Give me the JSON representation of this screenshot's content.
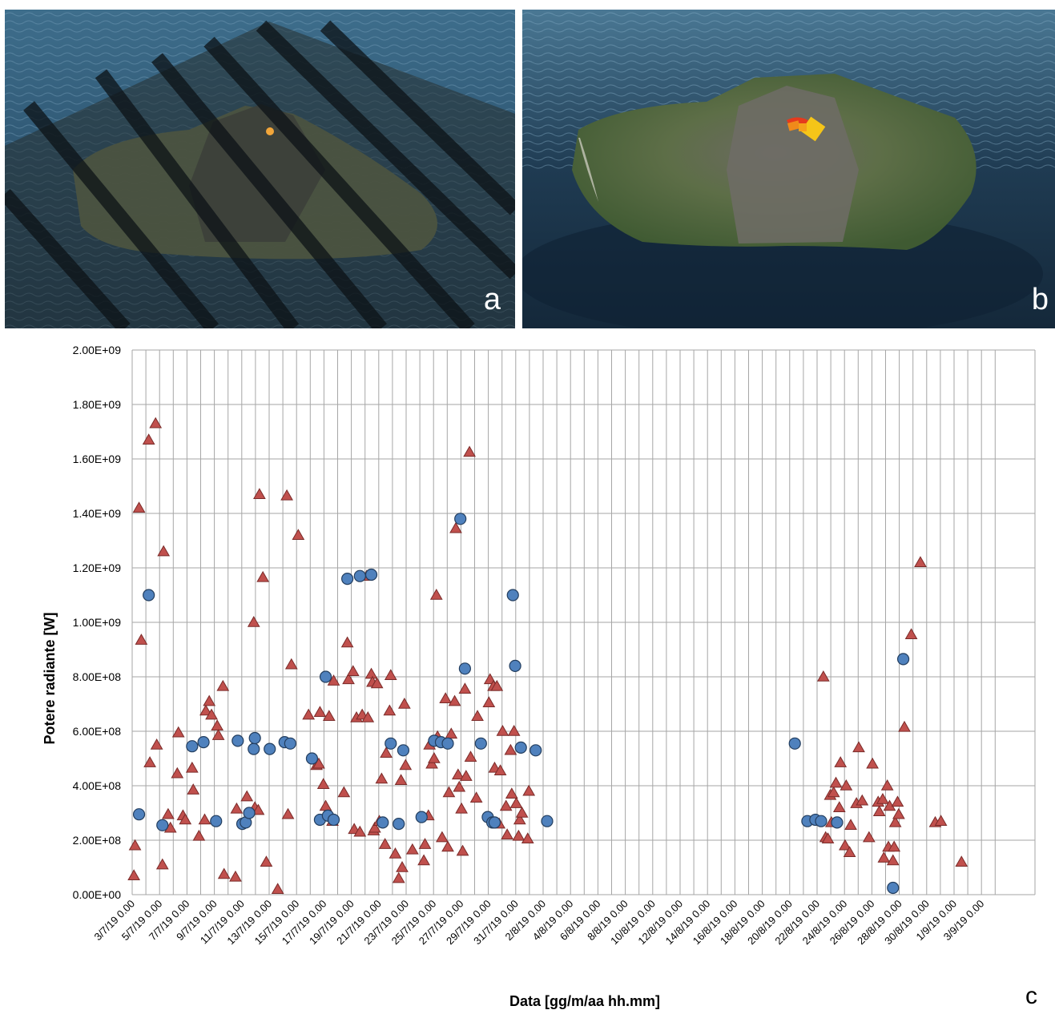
{
  "panels": {
    "a_label": "a",
    "b_label": "b",
    "c_label": "c"
  },
  "colors": {
    "triangle_fill": "#c0504d",
    "triangle_stroke": "#7a2b29",
    "circle_fill": "#4f81bd",
    "circle_stroke": "#233e5f",
    "grid": "#a6a6a6",
    "sea": "#1d3b55",
    "island": "#4a5a3a"
  },
  "chart_data": {
    "type": "scatter",
    "title": "",
    "xlabel": "Data [gg/m/aa hh.mm]",
    "ylabel": "Potere radiante [W]",
    "ylim": [
      0,
      2000000000
    ],
    "y_ticks": [
      {
        "value": 0,
        "label": "0.00E+00"
      },
      {
        "value": 200000000,
        "label": "2.00E+08"
      },
      {
        "value": 400000000,
        "label": "4.00E+08"
      },
      {
        "value": 600000000,
        "label": "6.00E+08"
      },
      {
        "value": 800000000,
        "label": "8.00E+08"
      },
      {
        "value": 1000000000,
        "label": "1.00E+09"
      },
      {
        "value": 1200000000,
        "label": "1.20E+09"
      },
      {
        "value": 1400000000,
        "label": "1.40E+09"
      },
      {
        "value": 1600000000,
        "label": "1.60E+09"
      },
      {
        "value": 1800000000,
        "label": "1.80E+09"
      },
      {
        "value": 2000000000,
        "label": "2.00E+09"
      }
    ],
    "xlim": [
      "2019-07-03",
      "2019-09-04"
    ],
    "x_tick_labels": [
      "3/7/19 0.00",
      "5/7/19 0.00",
      "7/7/19 0.00",
      "9/7/19 0.00",
      "11/7/19 0.00",
      "13/7/19 0.00",
      "15/7/19 0.00",
      "17/7/19 0.00",
      "19/7/19 0.00",
      "21/7/19 0.00",
      "23/7/19 0.00",
      "25/7/19 0.00",
      "27/7/19 0.00",
      "29/7/19 0.00",
      "31/7/19 0.00",
      "2/8/19 0.00",
      "4/8/19 0.00",
      "6/8/19 0.00",
      "8/8/19 0.00",
      "10/8/19 0.00",
      "12/8/19 0.00",
      "14/8/19 0.00",
      "16/8/19 0.00",
      "18/8/19 0.00",
      "20/8/19 0.00",
      "22/8/19 0.00",
      "24/8/19 0.00",
      "26/8/19 0.00",
      "28/8/19 0.00",
      "30/8/19 0.00",
      "1/9/19 0.00",
      "3/9/19 0.00"
    ],
    "grid": true,
    "legend": "none",
    "series": [
      {
        "marker": "triangle",
        "points": [
          [
            "2019-07-03 03:00",
            70000000
          ],
          [
            "2019-07-03 05:00",
            180000000
          ],
          [
            "2019-07-03 12:00",
            1420000000
          ],
          [
            "2019-07-03 16:00",
            935000000
          ],
          [
            "2019-07-04 05:00",
            1670000000
          ],
          [
            "2019-07-04 07:00",
            485000000
          ],
          [
            "2019-07-04 17:00",
            1730000000
          ],
          [
            "2019-07-04 19:00",
            550000000
          ],
          [
            "2019-07-05 05:00",
            110000000
          ],
          [
            "2019-07-05 07:00",
            1260000000
          ],
          [
            "2019-07-05 15:00",
            295000000
          ],
          [
            "2019-07-05 19:00",
            245000000
          ],
          [
            "2019-07-06 07:00",
            445000000
          ],
          [
            "2019-07-06 09:00",
            595000000
          ],
          [
            "2019-07-06 17:00",
            290000000
          ],
          [
            "2019-07-06 21:00",
            275000000
          ],
          [
            "2019-07-07 09:00",
            465000000
          ],
          [
            "2019-07-07 11:00",
            385000000
          ],
          [
            "2019-07-07 21:00",
            215000000
          ],
          [
            "2019-07-08 07:00",
            275000000
          ],
          [
            "2019-07-08 09:00",
            675000000
          ],
          [
            "2019-07-08 15:00",
            710000000
          ],
          [
            "2019-07-08 19:00",
            660000000
          ],
          [
            "2019-07-09 05:00",
            620000000
          ],
          [
            "2019-07-09 07:00",
            585000000
          ],
          [
            "2019-07-09 15:00",
            765000000
          ],
          [
            "2019-07-09 17:00",
            75000000
          ],
          [
            "2019-07-10 13:00",
            65000000
          ],
          [
            "2019-07-10 15:00",
            315000000
          ],
          [
            "2019-07-11 09:00",
            360000000
          ],
          [
            "2019-07-11 21:00",
            1000000000
          ],
          [
            "2019-07-11 23:00",
            320000000
          ],
          [
            "2019-07-12 05:00",
            310000000
          ],
          [
            "2019-07-12 07:00",
            1470000000
          ],
          [
            "2019-07-12 13:00",
            1165000000
          ],
          [
            "2019-07-12 19:00",
            120000000
          ],
          [
            "2019-07-13 15:00",
            20000000
          ],
          [
            "2019-07-14 07:00",
            1465000000
          ],
          [
            "2019-07-14 09:00",
            295000000
          ],
          [
            "2019-07-14 15:00",
            845000000
          ],
          [
            "2019-07-15 03:00",
            1320000000
          ],
          [
            "2019-07-15 21:00",
            660000000
          ],
          [
            "2019-07-16 11:00",
            475000000
          ],
          [
            "2019-07-16 15:00",
            480000000
          ],
          [
            "2019-07-16 17:00",
            670000000
          ],
          [
            "2019-07-16 23:00",
            405000000
          ],
          [
            "2019-07-17 03:00",
            325000000
          ],
          [
            "2019-07-17 09:00",
            655000000
          ],
          [
            "2019-07-17 15:00",
            270000000
          ],
          [
            "2019-07-17 17:00",
            785000000
          ],
          [
            "2019-07-18 11:00",
            375000000
          ],
          [
            "2019-07-18 17:00",
            925000000
          ],
          [
            "2019-07-18 19:00",
            790000000
          ],
          [
            "2019-07-19 03:00",
            820000000
          ],
          [
            "2019-07-19 05:00",
            240000000
          ],
          [
            "2019-07-19 09:00",
            650000000
          ],
          [
            "2019-07-19 15:00",
            230000000
          ],
          [
            "2019-07-19 19:00",
            660000000
          ],
          [
            "2019-07-20 03:00",
            1170000000
          ],
          [
            "2019-07-20 05:00",
            650000000
          ],
          [
            "2019-07-20 11:00",
            810000000
          ],
          [
            "2019-07-20 13:00",
            780000000
          ],
          [
            "2019-07-20 15:00",
            235000000
          ],
          [
            "2019-07-20 17:00",
            245000000
          ],
          [
            "2019-07-20 21:00",
            775000000
          ],
          [
            "2019-07-21 01:00",
            270000000
          ],
          [
            "2019-07-21 05:00",
            425000000
          ],
          [
            "2019-07-21 11:00",
            185000000
          ],
          [
            "2019-07-21 13:00",
            520000000
          ],
          [
            "2019-07-21 19:00",
            675000000
          ],
          [
            "2019-07-21 21:00",
            805000000
          ],
          [
            "2019-07-22 05:00",
            150000000
          ],
          [
            "2019-07-22 11:00",
            60000000
          ],
          [
            "2019-07-22 15:00",
            420000000
          ],
          [
            "2019-07-22 17:00",
            100000000
          ],
          [
            "2019-07-22 21:00",
            700000000
          ],
          [
            "2019-07-22 23:00",
            475000000
          ],
          [
            "2019-07-23 11:00",
            165000000
          ],
          [
            "2019-07-24 07:00",
            125000000
          ],
          [
            "2019-07-24 09:00",
            185000000
          ],
          [
            "2019-07-24 15:00",
            290000000
          ],
          [
            "2019-07-24 17:00",
            550000000
          ],
          [
            "2019-07-24 21:00",
            480000000
          ],
          [
            "2019-07-25 01:00",
            500000000
          ],
          [
            "2019-07-25 05:00",
            1100000000
          ],
          [
            "2019-07-25 07:00",
            580000000
          ],
          [
            "2019-07-25 15:00",
            210000000
          ],
          [
            "2019-07-25 21:00",
            720000000
          ],
          [
            "2019-07-26 01:00",
            175000000
          ],
          [
            "2019-07-26 03:00",
            375000000
          ],
          [
            "2019-07-26 07:00",
            590000000
          ],
          [
            "2019-07-26 13:00",
            710000000
          ],
          [
            "2019-07-26 15:00",
            1345000000
          ],
          [
            "2019-07-26 19:00",
            440000000
          ],
          [
            "2019-07-26 21:00",
            395000000
          ],
          [
            "2019-07-27 01:00",
            315000000
          ],
          [
            "2019-07-27 03:00",
            160000000
          ],
          [
            "2019-07-27 07:00",
            755000000
          ],
          [
            "2019-07-27 09:00",
            435000000
          ],
          [
            "2019-07-27 15:00",
            1625000000
          ],
          [
            "2019-07-27 17:00",
            505000000
          ],
          [
            "2019-07-28 03:00",
            355000000
          ],
          [
            "2019-07-28 05:00",
            655000000
          ],
          [
            "2019-07-29 01:00",
            705000000
          ],
          [
            "2019-07-29 03:00",
            790000000
          ],
          [
            "2019-07-29 09:00",
            765000000
          ],
          [
            "2019-07-29 11:00",
            465000000
          ],
          [
            "2019-07-29 15:00",
            765000000
          ],
          [
            "2019-07-29 19:00",
            260000000
          ],
          [
            "2019-07-29 21:00",
            455000000
          ],
          [
            "2019-07-30 01:00",
            600000000
          ],
          [
            "2019-07-30 07:00",
            325000000
          ],
          [
            "2019-07-30 09:00",
            220000000
          ],
          [
            "2019-07-30 15:00",
            530000000
          ],
          [
            "2019-07-30 17:00",
            370000000
          ],
          [
            "2019-07-30 21:00",
            600000000
          ],
          [
            "2019-07-31 01:00",
            335000000
          ],
          [
            "2019-07-31 05:00",
            215000000
          ],
          [
            "2019-07-31 07:00",
            275000000
          ],
          [
            "2019-07-31 11:00",
            300000000
          ],
          [
            "2019-07-31 21:00",
            205000000
          ],
          [
            "2019-07-31 23:00",
            380000000
          ],
          [
            "2019-08-22 11:00",
            800000000
          ],
          [
            "2019-08-22 15:00",
            210000000
          ],
          [
            "2019-08-22 19:00",
            205000000
          ],
          [
            "2019-08-22 23:00",
            365000000
          ],
          [
            "2019-08-23 01:00",
            265000000
          ],
          [
            "2019-08-23 05:00",
            375000000
          ],
          [
            "2019-08-23 09:00",
            410000000
          ],
          [
            "2019-08-23 15:00",
            320000000
          ],
          [
            "2019-08-23 17:00",
            485000000
          ],
          [
            "2019-08-24 01:00",
            180000000
          ],
          [
            "2019-08-24 03:00",
            400000000
          ],
          [
            "2019-08-24 09:00",
            155000000
          ],
          [
            "2019-08-24 11:00",
            255000000
          ],
          [
            "2019-08-24 21:00",
            335000000
          ],
          [
            "2019-08-25 01:00",
            540000000
          ],
          [
            "2019-08-25 07:00",
            345000000
          ],
          [
            "2019-08-25 19:00",
            210000000
          ],
          [
            "2019-08-26 01:00",
            480000000
          ],
          [
            "2019-08-26 11:00",
            340000000
          ],
          [
            "2019-08-26 13:00",
            305000000
          ],
          [
            "2019-08-26 19:00",
            350000000
          ],
          [
            "2019-08-26 21:00",
            135000000
          ],
          [
            "2019-08-27 03:00",
            400000000
          ],
          [
            "2019-08-27 05:00",
            175000000
          ],
          [
            "2019-08-27 07:00",
            325000000
          ],
          [
            "2019-08-27 13:00",
            125000000
          ],
          [
            "2019-08-27 15:00",
            175000000
          ],
          [
            "2019-08-27 17:00",
            265000000
          ],
          [
            "2019-08-27 21:00",
            340000000
          ],
          [
            "2019-08-27 23:00",
            295000000
          ],
          [
            "2019-08-28 09:00",
            615000000
          ],
          [
            "2019-08-28 21:00",
            955000000
          ],
          [
            "2019-08-29 13:00",
            1220000000
          ],
          [
            "2019-08-30 15:00",
            265000000
          ],
          [
            "2019-08-31 01:00",
            270000000
          ],
          [
            "2019-09-01 13:00",
            120000000
          ]
        ]
      },
      {
        "marker": "circle",
        "points": [
          [
            "2019-07-03 12:00",
            295000000
          ],
          [
            "2019-07-04 05:00",
            1100000000
          ],
          [
            "2019-07-05 05:00",
            255000000
          ],
          [
            "2019-07-07 09:00",
            545000000
          ],
          [
            "2019-07-08 05:00",
            560000000
          ],
          [
            "2019-07-09 03:00",
            270000000
          ],
          [
            "2019-07-10 17:00",
            565000000
          ],
          [
            "2019-07-11 01:00",
            260000000
          ],
          [
            "2019-07-11 07:00",
            265000000
          ],
          [
            "2019-07-11 13:00",
            300000000
          ],
          [
            "2019-07-11 21:00",
            535000000
          ],
          [
            "2019-07-11 23:00",
            575000000
          ],
          [
            "2019-07-13 01:00",
            535000000
          ],
          [
            "2019-07-14 03:00",
            560000000
          ],
          [
            "2019-07-14 13:00",
            555000000
          ],
          [
            "2019-07-16 03:00",
            500000000
          ],
          [
            "2019-07-16 17:00",
            275000000
          ],
          [
            "2019-07-17 03:00",
            800000000
          ],
          [
            "2019-07-17 07:00",
            290000000
          ],
          [
            "2019-07-17 17:00",
            275000000
          ],
          [
            "2019-07-18 17:00",
            1160000000
          ],
          [
            "2019-07-19 15:00",
            1170000000
          ],
          [
            "2019-07-20 11:00",
            1175000000
          ],
          [
            "2019-07-21 07:00",
            265000000
          ],
          [
            "2019-07-21 21:00",
            555000000
          ],
          [
            "2019-07-22 11:00",
            260000000
          ],
          [
            "2019-07-22 19:00",
            530000000
          ],
          [
            "2019-07-24 03:00",
            285000000
          ],
          [
            "2019-07-25 01:00",
            565000000
          ],
          [
            "2019-07-25 13:00",
            560000000
          ],
          [
            "2019-07-26 01:00",
            555000000
          ],
          [
            "2019-07-26 23:00",
            1380000000
          ],
          [
            "2019-07-27 07:00",
            830000000
          ],
          [
            "2019-07-28 11:00",
            555000000
          ],
          [
            "2019-07-28 23:00",
            285000000
          ],
          [
            "2019-07-29 07:00",
            265000000
          ],
          [
            "2019-07-29 11:00",
            265000000
          ],
          [
            "2019-07-30 19:00",
            1100000000
          ],
          [
            "2019-07-30 23:00",
            840000000
          ],
          [
            "2019-07-31 09:00",
            540000000
          ],
          [
            "2019-08-01 11:00",
            530000000
          ],
          [
            "2019-08-02 07:00",
            270000000
          ],
          [
            "2019-08-20 09:00",
            555000000
          ],
          [
            "2019-08-21 07:00",
            270000000
          ],
          [
            "2019-08-21 21:00",
            275000000
          ],
          [
            "2019-08-22 07:00",
            270000000
          ],
          [
            "2019-08-23 11:00",
            265000000
          ],
          [
            "2019-08-27 13:00",
            25000000
          ],
          [
            "2019-08-28 07:00",
            865000000
          ]
        ]
      }
    ]
  }
}
